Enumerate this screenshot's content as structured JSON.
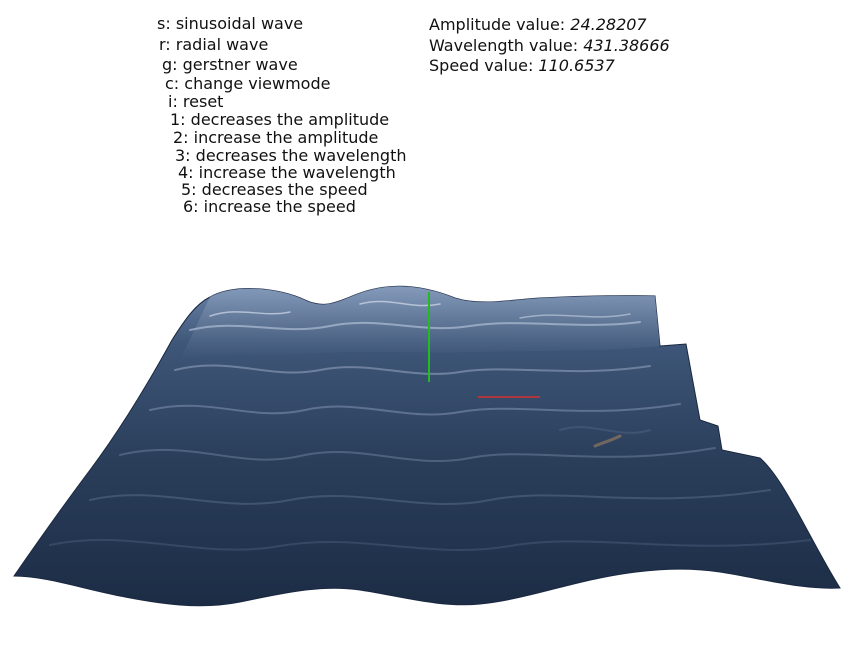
{
  "help": {
    "lines": [
      "s: sinusoidal wave",
      "r: radial wave",
      "g: gerstner wave",
      "c: change viewmode",
      "i: reset",
      "1: decreases the amplitude",
      "2: increase the amplitude",
      "3: decreases the wavelength",
      "4: increase the wavelength",
      "5: decreases the speed",
      "6: increase the speed"
    ]
  },
  "params": {
    "amplitude_label": "Amplitude value: ",
    "amplitude_value": "24.28207",
    "wavelength_label": "Wavelength value: ",
    "wavelength_value": "431.38666",
    "speed_label": "Speed value: ",
    "speed_value": "110.6537"
  },
  "scene": {
    "water_dark": "#1b2a42",
    "water_mid": "#2e4560",
    "water_light": "#5d7597",
    "axis_y_color": "#22bb22",
    "axis_x_color": "#d83030"
  }
}
